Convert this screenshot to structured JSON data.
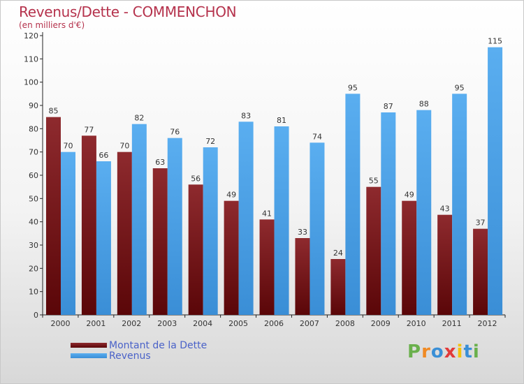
{
  "chart_data": {
    "type": "bar",
    "title": "Revenus/Dette - COMMENCHON",
    "subtitle": "(en milliers d'€)",
    "categories": [
      "2000",
      "2001",
      "2002",
      "2003",
      "2004",
      "2005",
      "2006",
      "2007",
      "2008",
      "2009",
      "2010",
      "2011",
      "2012"
    ],
    "series": [
      {
        "name": "Montant de la Dette",
        "color": "#8b1e22",
        "values": [
          85,
          77,
          70,
          63,
          56,
          49,
          41,
          33,
          24,
          55,
          49,
          43,
          37
        ]
      },
      {
        "name": "Revenus",
        "color": "#4aa3e6",
        "values": [
          70,
          66,
          82,
          76,
          72,
          83,
          81,
          74,
          95,
          87,
          88,
          95,
          115
        ]
      }
    ],
    "yticks": [
      0,
      10,
      20,
      30,
      40,
      50,
      60,
      70,
      80,
      90,
      100,
      110,
      120
    ],
    "ylim": [
      0,
      120
    ],
    "grid": false,
    "legend_position": "bottom-left"
  },
  "logo": {
    "text": "Proxiti",
    "letters": [
      "P",
      "r",
      "o",
      "x",
      "i",
      "t",
      "i"
    ],
    "colors": [
      "#6ab04c",
      "#f08a24",
      "#3a8fd6",
      "#e23a3a",
      "#f4c20d",
      "#3a8fd6",
      "#6ab04c"
    ]
  }
}
